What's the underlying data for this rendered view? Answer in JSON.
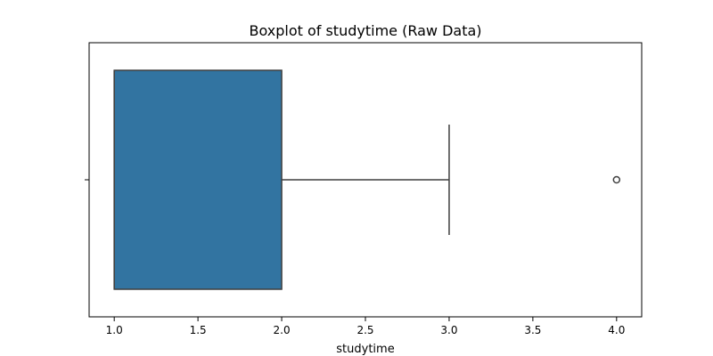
{
  "chart_data": {
    "type": "boxplot",
    "title": "Boxplot of studytime (Raw Data)",
    "xlabel": "studytime",
    "ylabel": "",
    "orientation": "horizontal",
    "xlim": [
      0.85,
      4.15
    ],
    "xticks": [
      1.0,
      1.5,
      2.0,
      2.5,
      3.0,
      3.5,
      4.0
    ],
    "xtick_labels": [
      "1.0",
      "1.5",
      "2.0",
      "2.5",
      "3.0",
      "3.5",
      "4.0"
    ],
    "grid": false,
    "box": {
      "min": 1.0,
      "q1": 1.0,
      "median": 1.0,
      "q3": 2.0,
      "whisker_low": 1.0,
      "whisker_high": 3.0,
      "outliers": [
        4.0
      ]
    },
    "colors": {
      "box_fill": "#3274a1",
      "lines": "#3f3f3f",
      "axes": "#000000"
    }
  }
}
